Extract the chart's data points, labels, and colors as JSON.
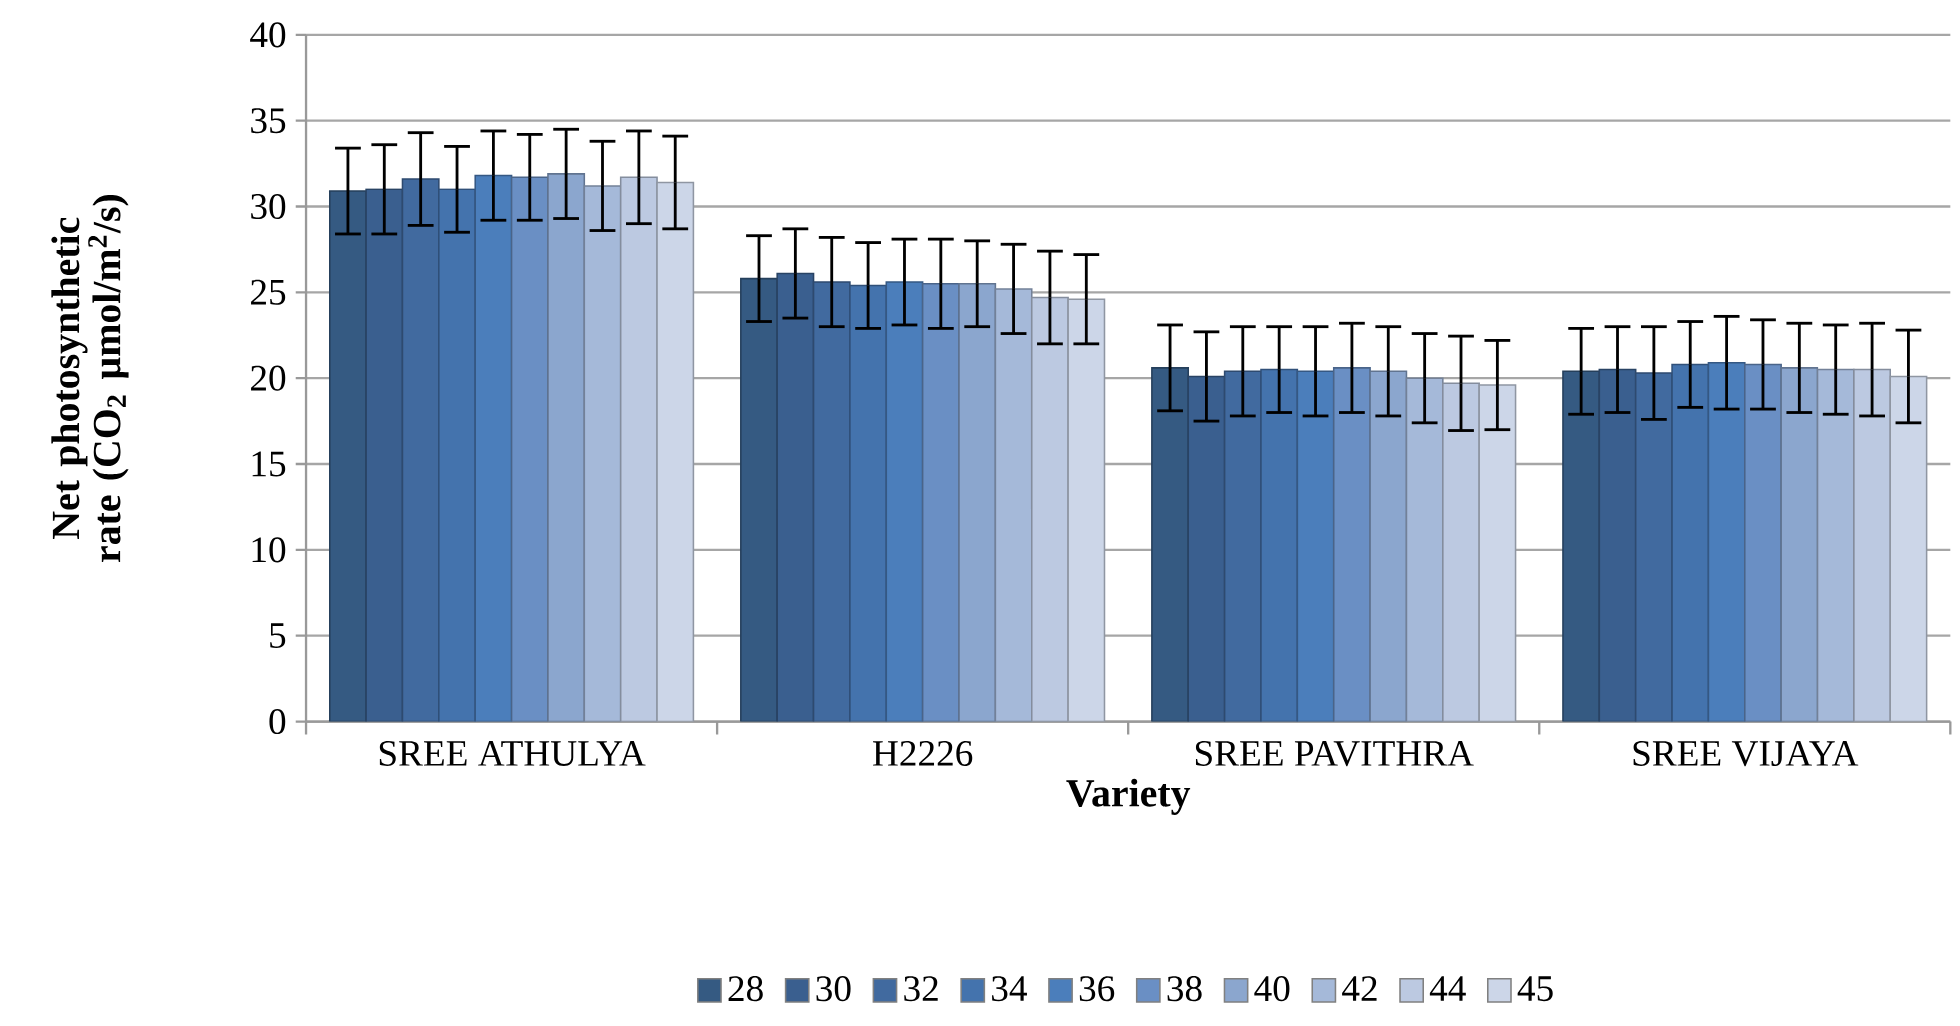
{
  "chart_data": {
    "type": "bar",
    "xlabel": "Variety",
    "ylabel": "Net photosynthetic rate (CO$_{2}$ µmol/m$^{2}$/s)",
    "categories": [
      "SREE ATHULYA",
      "H2226",
      "SREE PAVITHRA",
      "SREE VIJAYA"
    ],
    "ylim": [
      0,
      40
    ],
    "yticks": [
      0,
      5,
      10,
      15,
      20,
      25,
      30,
      35,
      40
    ],
    "grid": "y",
    "legend": "bottom",
    "series": [
      {
        "name": "28",
        "color": "#355a82",
        "values": [
          30.9,
          25.8,
          20.6,
          20.4
        ],
        "errors": [
          2.5,
          2.5,
          2.5,
          2.5
        ]
      },
      {
        "name": "30",
        "color": "#3a5f8f",
        "values": [
          31.0,
          26.1,
          20.1,
          20.5
        ],
        "errors": [
          2.6,
          2.6,
          2.6,
          2.5
        ]
      },
      {
        "name": "32",
        "color": "#416a9f",
        "values": [
          31.6,
          25.6,
          20.4,
          20.3
        ],
        "errors": [
          2.7,
          2.6,
          2.6,
          2.7
        ]
      },
      {
        "name": "34",
        "color": "#4473ad",
        "values": [
          31.0,
          25.4,
          20.5,
          20.8
        ],
        "errors": [
          2.5,
          2.5,
          2.5,
          2.5
        ]
      },
      {
        "name": "36",
        "color": "#4b7ebb",
        "values": [
          31.8,
          25.6,
          20.4,
          20.9
        ],
        "errors": [
          2.6,
          2.5,
          2.6,
          2.7
        ]
      },
      {
        "name": "38",
        "color": "#6a8fc4",
        "values": [
          31.7,
          25.5,
          20.6,
          20.8
        ],
        "errors": [
          2.5,
          2.6,
          2.6,
          2.6
        ]
      },
      {
        "name": "40",
        "color": "#8ba6ce",
        "values": [
          31.9,
          25.5,
          20.4,
          20.6
        ],
        "errors": [
          2.6,
          2.5,
          2.6,
          2.6
        ]
      },
      {
        "name": "42",
        "color": "#a5b9d9",
        "values": [
          31.2,
          25.2,
          20.0,
          20.5
        ],
        "errors": [
          2.6,
          2.6,
          2.6,
          2.6
        ]
      },
      {
        "name": "44",
        "color": "#bcc9e1",
        "values": [
          31.7,
          24.7,
          19.7,
          20.5
        ],
        "errors": [
          2.7,
          2.7,
          2.75,
          2.7
        ]
      },
      {
        "name": "45",
        "color": "#ccd6e8",
        "values": [
          31.4,
          24.6,
          19.6,
          20.1
        ],
        "errors": [
          2.7,
          2.6,
          2.6,
          2.7
        ]
      }
    ]
  }
}
